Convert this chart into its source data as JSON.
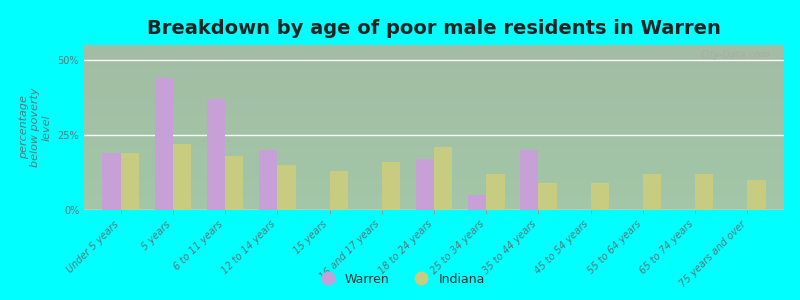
{
  "title": "Breakdown by age of poor male residents in Warren",
  "ylabel": "percentage\nbelow poverty\nlevel",
  "categories": [
    "Under 5 years",
    "5 years",
    "6 to 11 years",
    "12 to 14 years",
    "15 years",
    "16 and 17 years",
    "18 to 24 years",
    "25 to 34 years",
    "35 to 44 years",
    "45 to 54 years",
    "55 to 64 years",
    "65 to 74 years",
    "75 years and over"
  ],
  "warren_values": [
    19,
    44,
    37,
    20,
    0,
    0,
    17,
    5,
    20,
    0,
    0,
    0,
    0
  ],
  "indiana_values": [
    19,
    22,
    18,
    15,
    13,
    16,
    21,
    12,
    9,
    9,
    12,
    12,
    10
  ],
  "warren_color": "#c8a0d8",
  "indiana_color": "#c8cc80",
  "background_color": "#00ffff",
  "plot_bg_color": "#e8f0d8",
  "ylim": [
    0,
    55
  ],
  "yticks": [
    0,
    25,
    50
  ],
  "ytick_labels": [
    "0%",
    "25%",
    "50%"
  ],
  "bar_width": 0.35,
  "watermark": "City-Data.com",
  "legend_warren": "Warren",
  "legend_indiana": "Indiana",
  "title_fontsize": 14,
  "axis_label_fontsize": 8,
  "tick_fontsize": 7,
  "label_color": "#557777",
  "tick_color": "#557777"
}
